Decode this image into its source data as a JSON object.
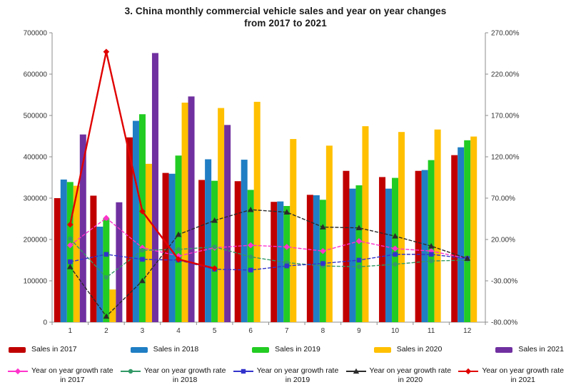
{
  "title": {
    "line1": "3. China monthly commercial vehicle sales and year on year changes",
    "line2": "from 2017 to 2021"
  },
  "chart_data": {
    "type": "bar+line",
    "categories": [
      "1",
      "2",
      "3",
      "4",
      "5",
      "6",
      "7",
      "8",
      "9",
      "10",
      "11",
      "12"
    ],
    "left_axis": {
      "min": 0,
      "max": 700000,
      "step": 100000,
      "tick_labels": [
        "0",
        "100000",
        "200000",
        "300000",
        "400000",
        "500000",
        "600000",
        "700000"
      ]
    },
    "right_axis": {
      "min": -80,
      "max": 270,
      "step": 50,
      "tick_labels": [
        "-80.00%",
        "-30.00%",
        "20.00%",
        "70.00%",
        "120.00%",
        "170.00%",
        "220.00%",
        "270.00%"
      ]
    },
    "bar_series": [
      {
        "name": "Sales in 2017",
        "color": "#C00000",
        "values": [
          300000,
          306000,
          447000,
          361000,
          344000,
          341000,
          291000,
          308000,
          366000,
          351000,
          366000,
          404000
        ]
      },
      {
        "name": "Sales in 2018",
        "color": "#1F7EC4",
        "values": [
          345000,
          231000,
          487000,
          359000,
          394000,
          393000,
          292000,
          307000,
          323000,
          323000,
          368000,
          423000
        ]
      },
      {
        "name": "Sales in 2019",
        "color": "#22CC22",
        "values": [
          339000,
          251000,
          503000,
          403000,
          342000,
          320000,
          281000,
          296000,
          331000,
          349000,
          392000,
          440000
        ]
      },
      {
        "name": "Sales in 2020",
        "color": "#FFC000",
        "values": [
          330000,
          79000,
          383000,
          531000,
          518000,
          533000,
          443000,
          427000,
          474000,
          460000,
          466000,
          449000
        ]
      },
      {
        "name": "Sales in 2021",
        "color": "#7030A0",
        "values": [
          454000,
          290000,
          651000,
          546000,
          477000,
          null,
          null,
          null,
          null,
          null,
          null,
          null
        ]
      }
    ],
    "line_series": [
      {
        "name": "Year on year growth rate in 2017",
        "color": "#FF33CC",
        "marker": "diamond",
        "dashed": true,
        "values": [
          13,
          46,
          10,
          0,
          10,
          13,
          11,
          6,
          18,
          9,
          6,
          -3
        ]
      },
      {
        "name": "Year on year growth rate in 2018",
        "color": "#339966",
        "marker": "circle",
        "dashed": true,
        "values": [
          21,
          -26,
          7,
          8,
          11,
          -1,
          -8,
          -12,
          -13,
          -10,
          -6,
          -5
        ]
      },
      {
        "name": "Year on year growth rate in 2019",
        "color": "#3333CC",
        "marker": "square",
        "dashed": true,
        "values": [
          -7,
          2,
          -4,
          -5,
          -16,
          -17,
          -12,
          -9,
          -5,
          2,
          2,
          -3
        ]
      },
      {
        "name": "Year on year growth rate in 2020",
        "color": "#2B2B2B",
        "marker": "triangle",
        "dashed": true,
        "values": [
          -13,
          -73,
          -30,
          26,
          43,
          56,
          53,
          35,
          34,
          24,
          12,
          -3
        ]
      },
      {
        "name": "Year on year growth rate in 2021",
        "color": "#E00000",
        "marker": "diamond",
        "dashed": false,
        "values": [
          38,
          247,
          54,
          -4,
          -15,
          null,
          null,
          null,
          null,
          null,
          null,
          null
        ]
      }
    ]
  },
  "legend": {
    "sales": [
      {
        "label": "Sales in 2017",
        "color": "#C00000"
      },
      {
        "label": "Sales in 2018",
        "color": "#1F7EC4"
      },
      {
        "label": "Sales in 2019",
        "color": "#22CC22"
      },
      {
        "label": "Sales in 2020",
        "color": "#FFC000"
      },
      {
        "label": "Sales in 2021",
        "color": "#7030A0"
      }
    ],
    "growth": [
      {
        "label_line1": "Year on year growth rate",
        "label_line2": "in 2017",
        "color": "#FF33CC",
        "marker": "diamond"
      },
      {
        "label_line1": "Year on year growth rate",
        "label_line2": "in 2018",
        "color": "#339966",
        "marker": "circle"
      },
      {
        "label_line1": "Year on year growth rate",
        "label_line2": "in 2019",
        "color": "#3333CC",
        "marker": "square"
      },
      {
        "label_line1": "Year on year growth rate",
        "label_line2": "in 2020",
        "color": "#2B2B2B",
        "marker": "triangle"
      },
      {
        "label_line1": "Year on year growth rate",
        "label_line2": "in 2021",
        "color": "#E00000",
        "marker": "diamond"
      }
    ]
  }
}
